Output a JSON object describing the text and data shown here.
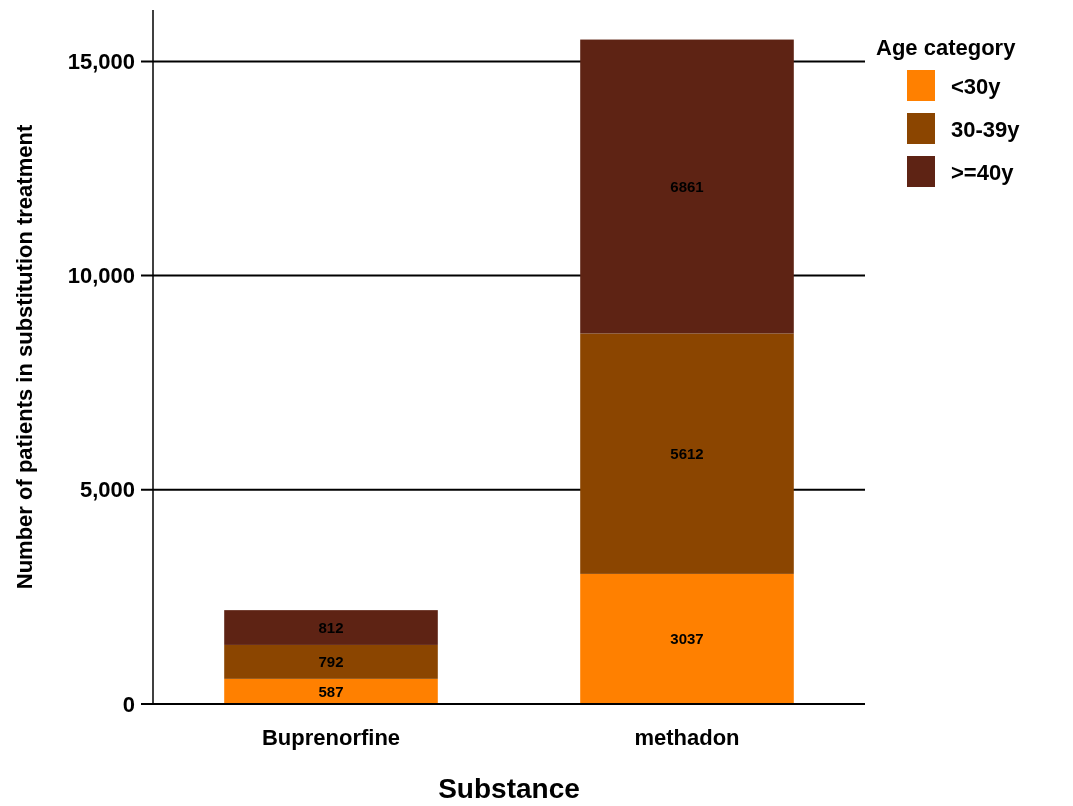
{
  "chart_data": {
    "type": "bar",
    "stacked": true,
    "xlabel": "Substance",
    "ylabel": "Number of patients in substitution treatment",
    "legend_title": "Age category",
    "legend": "top right",
    "grid": "y",
    "data_labels": true,
    "categories": [
      "Buprenorfine",
      "methadon"
    ],
    "ylim": [
      0,
      16200
    ],
    "yticks": [
      0,
      {
        "value": 5000,
        "label": "5,000"
      },
      {
        "value": 10000,
        "label": "10,000"
      },
      {
        "value": 15000,
        "label": "15,000"
      }
    ],
    "series": [
      {
        "name": "<30y",
        "color": "#ff8000",
        "values": [
          587,
          3037
        ]
      },
      {
        "name": "30-39y",
        "color": "#8b4500",
        "values": [
          792,
          5612
        ]
      },
      {
        "name": ">=40y",
        "color": "#5e2314",
        "values": [
          812,
          6861
        ]
      }
    ]
  }
}
